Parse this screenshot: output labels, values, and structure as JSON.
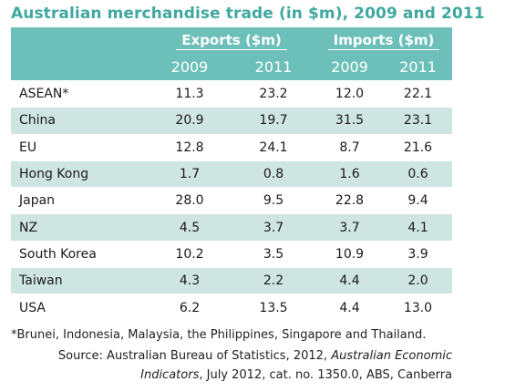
{
  "title": "Australian merchandise trade (in $m), 2009 and 2011",
  "header": {
    "exports_label": "Exports ($m)",
    "imports_label": "Imports ($m)",
    "years": [
      "2009",
      "2011",
      "2009",
      "2011"
    ]
  },
  "rows": [
    {
      "label": "ASEAN*",
      "values": [
        "11.3",
        "23.2",
        "12.0",
        "22.1"
      ]
    },
    {
      "label": "China",
      "values": [
        "20.9",
        "19.7",
        "31.5",
        "23.1"
      ]
    },
    {
      "label": "EU",
      "values": [
        "12.8",
        "24.1",
        "8.7",
        "21.6"
      ]
    },
    {
      "label": "Hong Kong",
      "values": [
        "1.7",
        "0.8",
        "1.6",
        "0.6"
      ]
    },
    {
      "label": "Japan",
      "values": [
        "28.0",
        "9.5",
        "22.8",
        "9.4"
      ]
    },
    {
      "label": "NZ",
      "values": [
        "4.5",
        "3.7",
        "3.7",
        "4.1"
      ]
    },
    {
      "label": "South Korea",
      "values": [
        "10.2",
        "3.5",
        "10.9",
        "3.9"
      ]
    },
    {
      "label": "Taiwan",
      "values": [
        "4.3",
        "2.2",
        "4.4",
        "2.0"
      ]
    },
    {
      "label": "USA",
      "values": [
        "6.2",
        "13.5",
        "4.4",
        "13.0"
      ]
    }
  ],
  "footnote": "*Brunei, Indonesia, Malaysia, the Philippines, Singapore and Thailand.",
  "source": {
    "prefix": "Source: Australian Bureau of Statistics, 2012, ",
    "italic1": "Australian Economic",
    "italic2": "Indicators",
    "suffix": ", July 2012, cat. no. 1350.0, ABS, Canberra"
  },
  "colors": {
    "title": "#3fa8a0",
    "header_bg": "#6cc0b9",
    "stripe": "#cfe5e1"
  }
}
